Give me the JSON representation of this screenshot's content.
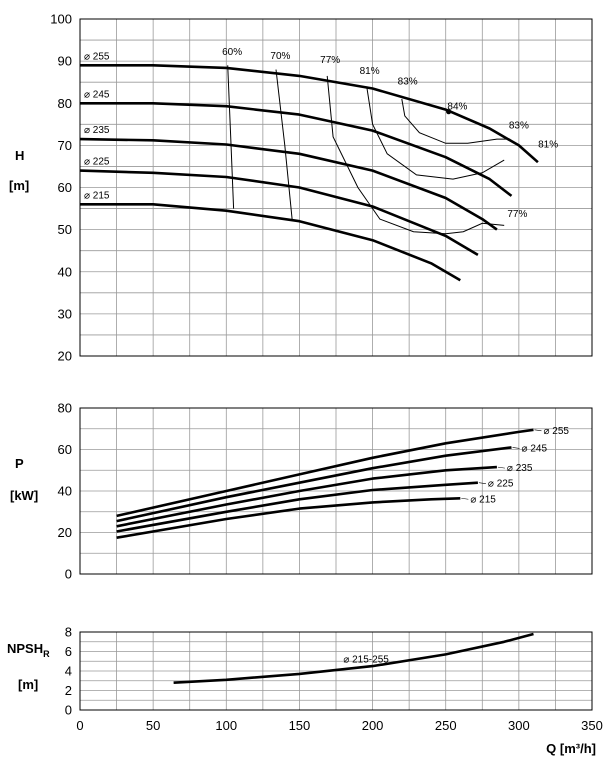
{
  "chart_data": [
    {
      "type": "line",
      "panel": "head",
      "ylabel": [
        "H",
        "[m]"
      ],
      "xlim": [
        0,
        350
      ],
      "ylim": [
        20,
        100
      ],
      "yticks": [
        20,
        30,
        40,
        50,
        60,
        70,
        80,
        90,
        100
      ],
      "grid": true,
      "series": [
        {
          "name": "⌀ 255",
          "x": [
            0,
            50,
            100,
            150,
            200,
            250,
            280,
            300,
            313
          ],
          "y": [
            89,
            89,
            88.4,
            86.5,
            83.5,
            78.5,
            74,
            70,
            66
          ]
        },
        {
          "name": "⌀ 245",
          "x": [
            0,
            50,
            100,
            150,
            200,
            250,
            280,
            295
          ],
          "y": [
            80,
            80,
            79.3,
            77.3,
            73.5,
            67.2,
            62,
            58
          ]
        },
        {
          "name": "⌀ 235",
          "x": [
            0,
            50,
            100,
            150,
            200,
            250,
            275,
            285
          ],
          "y": [
            71.5,
            71.2,
            70.2,
            68,
            64,
            57.5,
            52.5,
            50
          ]
        },
        {
          "name": "⌀ 225",
          "x": [
            0,
            50,
            100,
            150,
            200,
            250,
            272
          ],
          "y": [
            64,
            63.5,
            62.5,
            60,
            55.5,
            48.5,
            44
          ]
        },
        {
          "name": "⌀ 215",
          "x": [
            0,
            50,
            100,
            150,
            200,
            240,
            260
          ],
          "y": [
            56,
            56,
            54.5,
            52,
            47.5,
            42,
            38
          ]
        }
      ],
      "efficiency_lines": [
        {
          "label": "60%",
          "x": [
            101,
            103,
            105
          ],
          "y": [
            89,
            72,
            55
          ]
        },
        {
          "label": "70%",
          "x": [
            134,
            140,
            145
          ],
          "y": [
            88,
            70,
            52.5
          ]
        },
        {
          "label": "77%",
          "x": [
            169,
            173,
            190,
            205,
            228,
            250,
            262,
            275,
            290
          ],
          "y": [
            86.5,
            72,
            60,
            52.5,
            49.5,
            49,
            49.5,
            51.5,
            51
          ]
        },
        {
          "label": "81%",
          "x": [
            196,
            200,
            210,
            230,
            255,
            275,
            290
          ],
          "y": [
            84,
            75,
            68,
            63,
            62,
            63.5,
            66.5
          ]
        },
        {
          "label": "83%",
          "x": [
            220,
            222,
            232,
            250,
            265,
            285,
            294
          ],
          "y": [
            81,
            77,
            73,
            70.5,
            70.5,
            71.5,
            71.5
          ]
        }
      ],
      "efficiency_labels": [
        {
          "text": "60%",
          "x": 104,
          "y": 91.5
        },
        {
          "text": "70%",
          "x": 137,
          "y": 90.5
        },
        {
          "text": "77%",
          "x": 171,
          "y": 89.5
        },
        {
          "text": "81%",
          "x": 198,
          "y": 87
        },
        {
          "text": "83%",
          "x": 224,
          "y": 84.5
        },
        {
          "text": "84%",
          "x": 258,
          "y": 78.5
        },
        {
          "text": "83%",
          "x": 300,
          "y": 74
        },
        {
          "text": "81%",
          "x": 320,
          "y": 69.5
        },
        {
          "text": "77%",
          "x": 299,
          "y": 53
        }
      ],
      "best_point": {
        "label": "84%",
        "x": 252,
        "y": 78
      }
    },
    {
      "type": "line",
      "panel": "power",
      "ylabel": [
        "P",
        "[kW]"
      ],
      "xlim": [
        0,
        350
      ],
      "ylim": [
        0,
        80
      ],
      "yticks": [
        0,
        20,
        40,
        60,
        80
      ],
      "grid": true,
      "series": [
        {
          "name": "⌀ 255",
          "x": [
            25,
            100,
            150,
            200,
            250,
            300,
            310
          ],
          "y": [
            28,
            40,
            48,
            56,
            63,
            68.5,
            69.5
          ]
        },
        {
          "name": "⌀ 245",
          "x": [
            25,
            100,
            150,
            200,
            250,
            295
          ],
          "y": [
            25.5,
            37,
            44,
            51,
            57,
            61
          ]
        },
        {
          "name": "⌀ 235",
          "x": [
            25,
            100,
            150,
            200,
            250,
            285
          ],
          "y": [
            23,
            33.5,
            40,
            46,
            50,
            51.5
          ]
        },
        {
          "name": "⌀ 225",
          "x": [
            25,
            100,
            150,
            200,
            250,
            272
          ],
          "y": [
            20.5,
            30,
            36,
            40.5,
            43,
            44
          ]
        },
        {
          "name": "⌀ 215",
          "x": [
            25,
            100,
            150,
            200,
            240,
            260
          ],
          "y": [
            17.5,
            26.5,
            31.5,
            34.5,
            36,
            36.5
          ]
        }
      ]
    },
    {
      "type": "line",
      "panel": "npsh",
      "ylabel": [
        "NPSH",
        "R",
        "[m]"
      ],
      "xlabel": "Q [m³/h]",
      "xlim": [
        0,
        350
      ],
      "ylim": [
        0,
        8
      ],
      "xticks": [
        0,
        50,
        100,
        150,
        200,
        250,
        300,
        350
      ],
      "yticks": [
        0,
        2,
        4,
        6,
        8
      ],
      "grid": true,
      "series": [
        {
          "name": "⌀ 215-255",
          "x": [
            64,
            100,
            150,
            200,
            250,
            290,
            310
          ],
          "y": [
            2.8,
            3.1,
            3.7,
            4.5,
            5.7,
            7,
            7.8
          ]
        }
      ]
    }
  ]
}
